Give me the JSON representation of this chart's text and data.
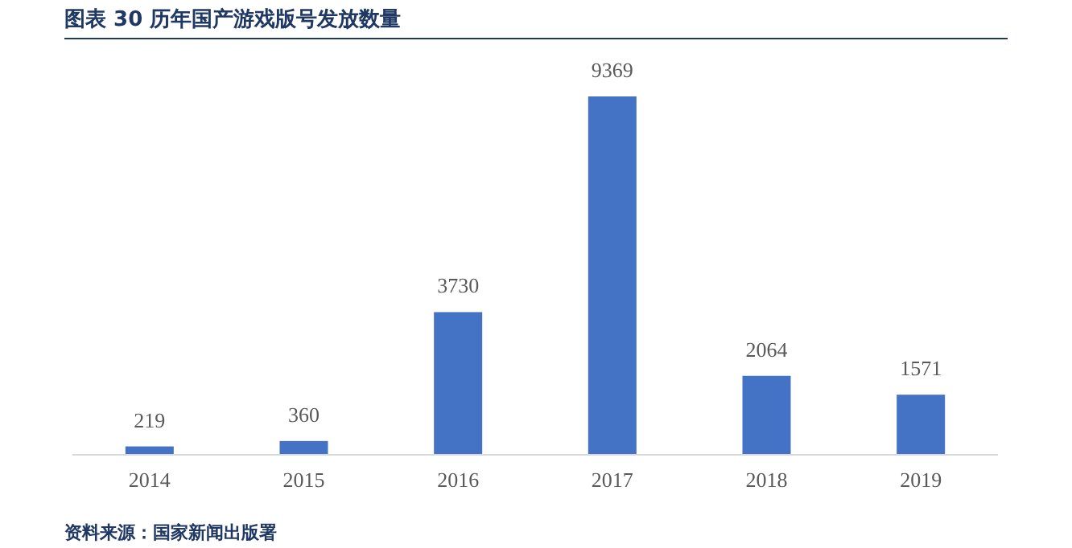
{
  "chart_data": {
    "type": "bar",
    "title": "图表 30 历年国产游戏版号发放数量",
    "categories": [
      "2014",
      "2015",
      "2016",
      "2017",
      "2018",
      "2019"
    ],
    "values": [
      219,
      360,
      3730,
      9369,
      2064,
      1571
    ],
    "color": "#4472c4",
    "data_labels": true,
    "annotations": [
      "资料来源：国家新闻出版署"
    ]
  }
}
